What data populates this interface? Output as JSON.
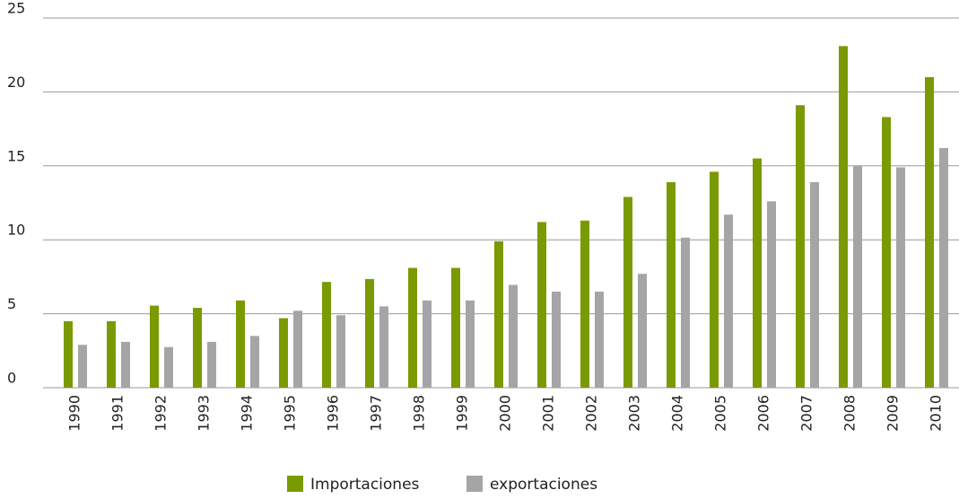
{
  "chart_data": {
    "type": "bar",
    "categories": [
      "1990",
      "1991",
      "1992",
      "1993",
      "1994",
      "1995",
      "1996",
      "1997",
      "1998",
      "1999",
      "2000",
      "2001",
      "2002",
      "2003",
      "2004",
      "2005",
      "2006",
      "2007",
      "2008",
      "2009",
      "2010"
    ],
    "series": [
      {
        "name": "Importaciones",
        "color": "#7a9a01",
        "values": [
          4.5,
          4.5,
          5.55,
          5.4,
          5.9,
          4.7,
          7.15,
          7.35,
          8.1,
          8.1,
          9.9,
          11.2,
          11.3,
          12.9,
          13.9,
          14.6,
          15.5,
          19.1,
          23.1,
          18.3,
          21
        ]
      },
      {
        "name": "exportaciones",
        "color": "#a5a5a8",
        "values": [
          2.9,
          3.1,
          2.75,
          3.1,
          3.5,
          5.2,
          4.9,
          5.5,
          5.9,
          5.9,
          6.95,
          6.5,
          6.5,
          7.7,
          10.15,
          11.7,
          12.6,
          13.9,
          15,
          14.9,
          16.2
        ]
      }
    ],
    "ylim": [
      0,
      25
    ],
    "yticks": [
      0,
      5,
      10,
      15,
      20,
      25
    ],
    "grid": true,
    "legend": "bottom"
  }
}
